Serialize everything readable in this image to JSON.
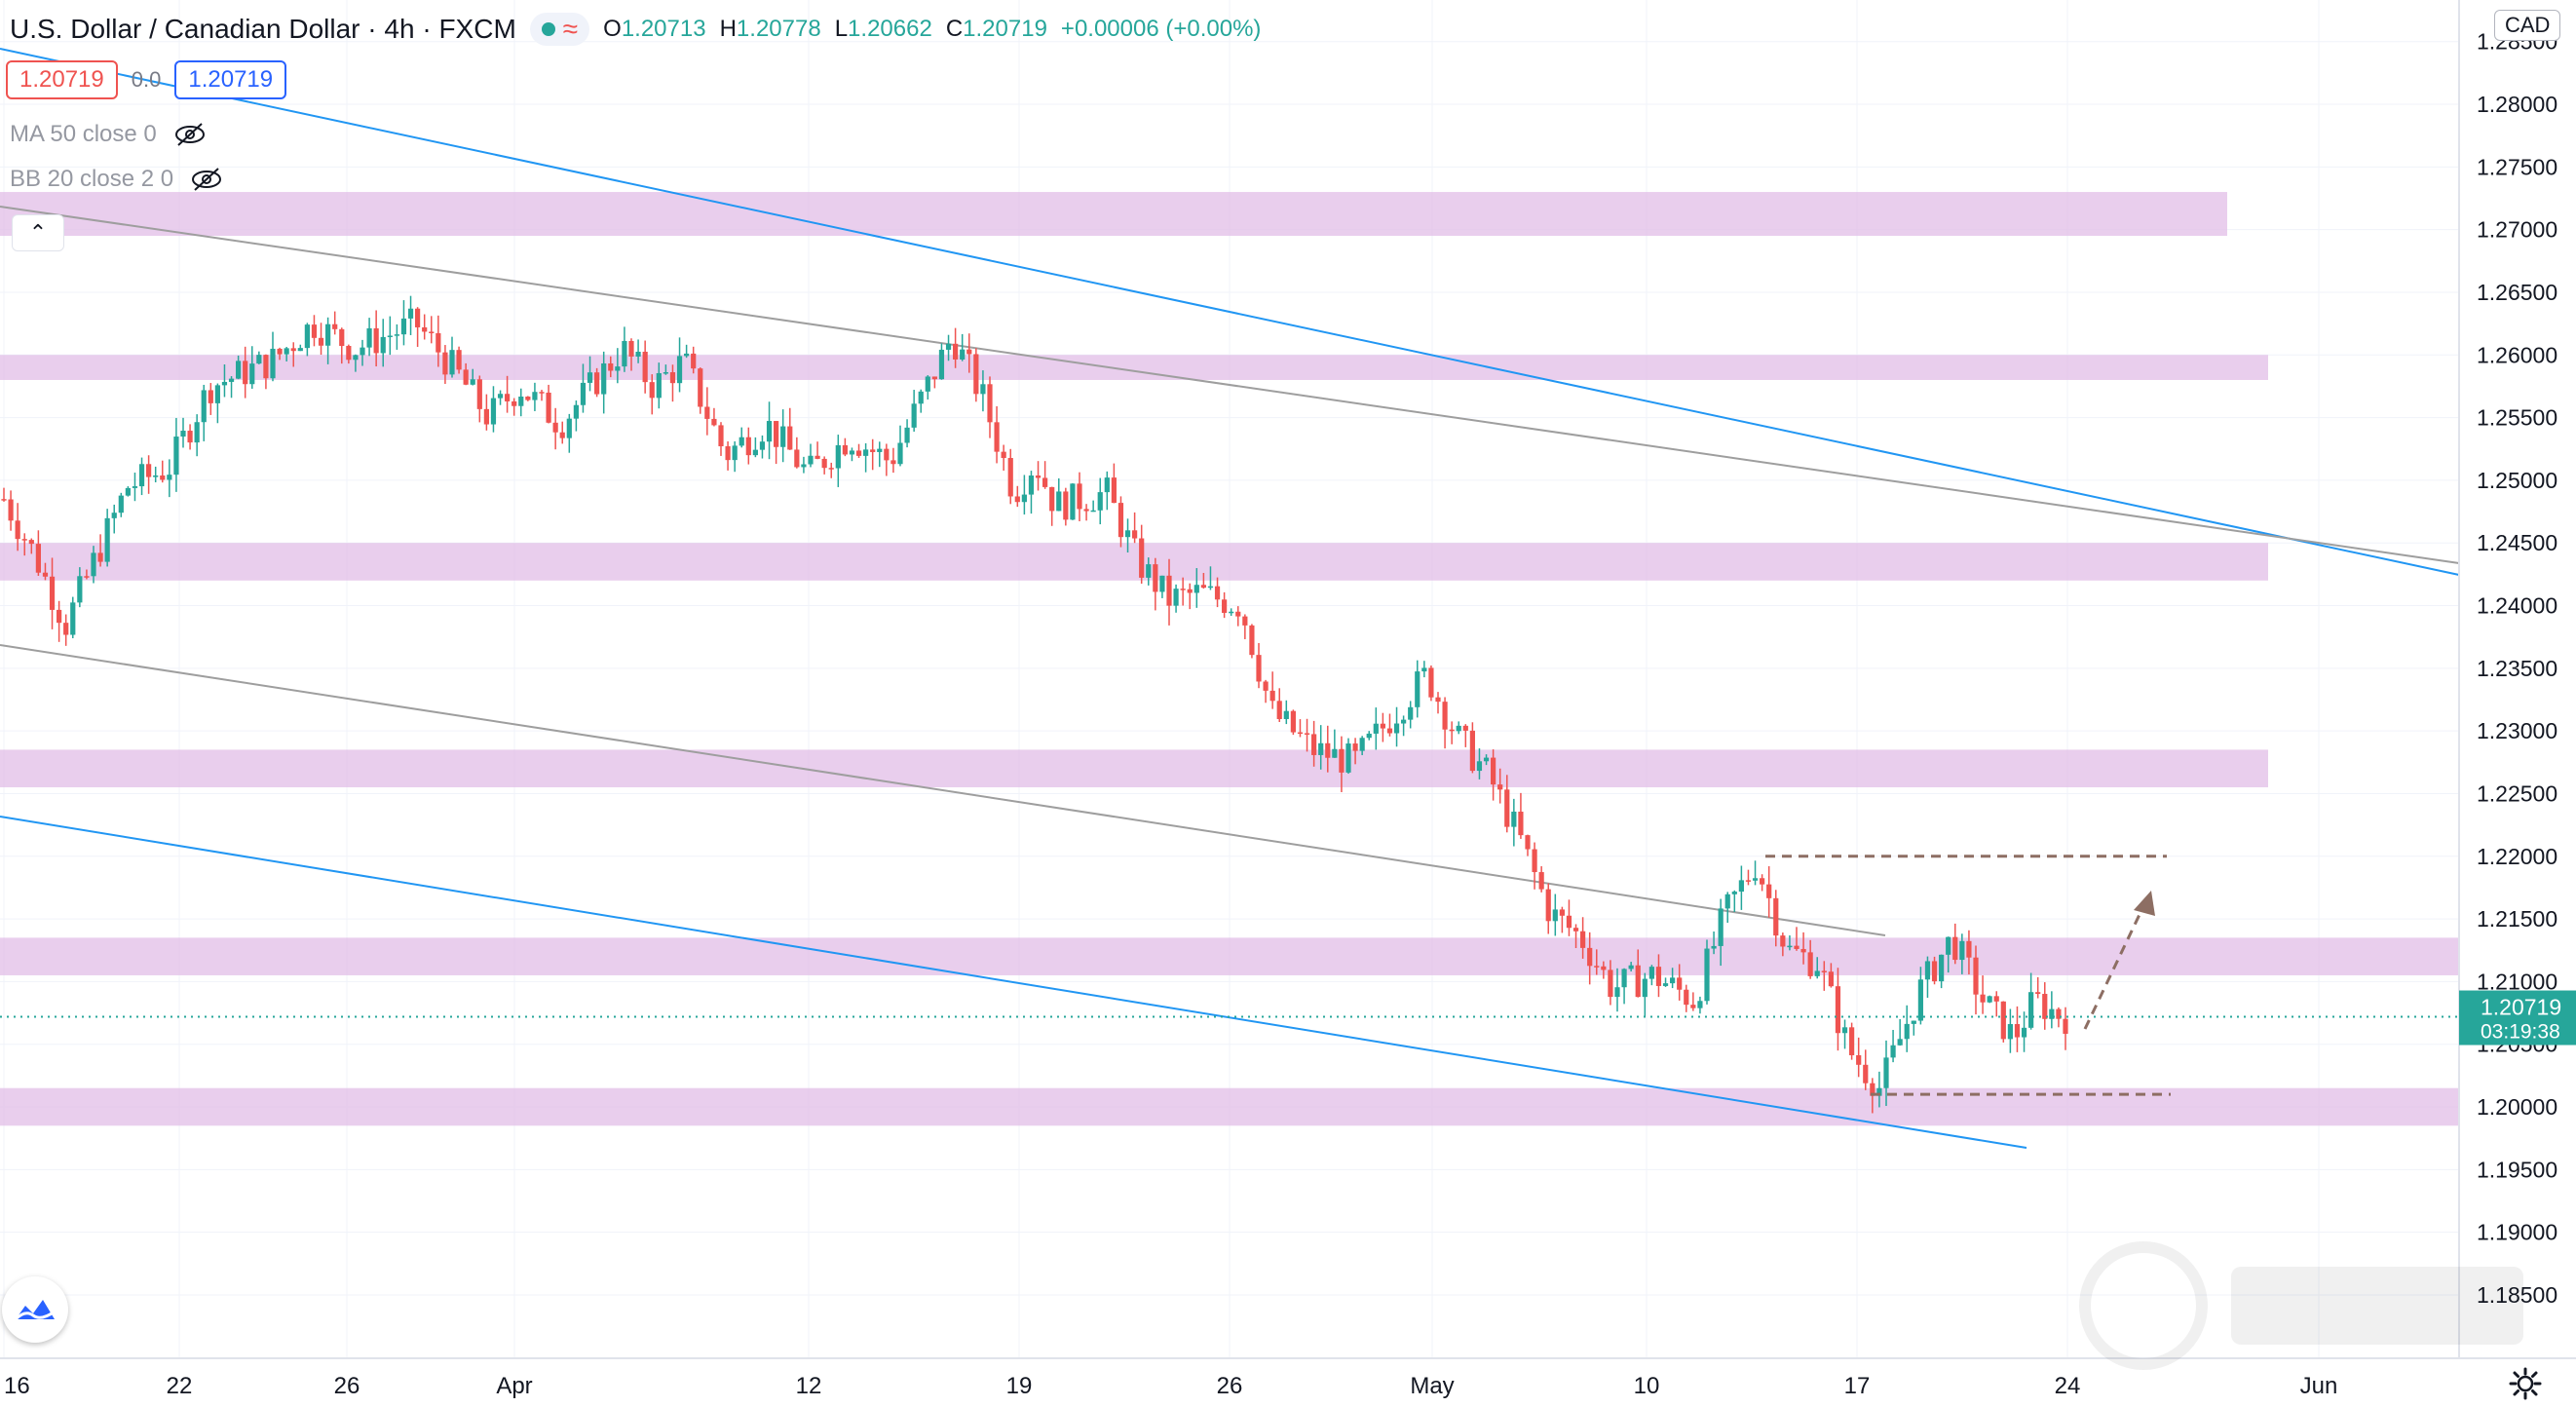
{
  "header": {
    "symbol": "U.S. Dollar / Canadian Dollar",
    "interval": "4h",
    "exchange": "FXCM",
    "ohlc": {
      "o_label": "O",
      "o": "1.20713",
      "h_label": "H",
      "h": "1.20778",
      "l_label": "L",
      "l": "1.20662",
      "c_label": "C",
      "c": "1.20719",
      "change": "+0.00006 (+0.00%)"
    },
    "bid": "1.20719",
    "spread": "0.0",
    "ask": "1.20719"
  },
  "indicators": {
    "ma": "MA 50 close 0",
    "bb": "BB 20 close 2 0"
  },
  "axis": {
    "currency": "CAD",
    "last_price": "1.20719",
    "countdown": "03:19:38"
  },
  "colors": {
    "up": "#26a69a",
    "down": "#ef5350",
    "zone": "#e1bee7",
    "channel_blue": "#2196f3",
    "channel_gray": "#9e9e9e",
    "range_line": "#8d6e63"
  },
  "chart_data": {
    "type": "candlestick",
    "symbol": "USDCAD",
    "timeframe": "4h",
    "x_tick_labels": [
      "16",
      "22",
      "26",
      "Apr",
      "12",
      "19",
      "26",
      "May",
      "10",
      "17",
      "24",
      "Jun"
    ],
    "y_ticks": [
      "1.18500",
      "1.19000",
      "1.19500",
      "1.20000",
      "1.20500",
      "1.21000",
      "1.21500",
      "1.22000",
      "1.22500",
      "1.23000",
      "1.23500",
      "1.24000",
      "1.24500",
      "1.25000",
      "1.25500",
      "1.26000",
      "1.26500",
      "1.27000",
      "1.27500",
      "1.28000",
      "1.28500"
    ],
    "ylim": [
      1.182,
      1.287
    ],
    "last_close": 1.20719,
    "price_path_x": [
      0,
      0.015,
      0.03,
      0.045,
      0.06,
      0.08,
      0.1,
      0.13,
      0.15,
      0.17,
      0.185,
      0.2,
      0.22,
      0.235,
      0.25,
      0.27,
      0.3,
      0.315,
      0.33,
      0.35,
      0.37,
      0.39,
      0.41,
      0.43,
      0.445,
      0.46,
      0.475,
      0.49,
      0.5,
      0.51,
      0.535,
      0.55,
      0.565,
      0.58,
      0.6,
      0.615,
      0.635,
      0.655,
      0.675,
      0.69,
      0.705,
      0.72,
      0.735,
      0.75,
      0.765,
      0.78,
      0.8,
      0.82,
      0.835,
      0.85,
      0.865,
      0.88,
      0.895,
      0.91,
      0.93,
      0.945,
      0.96,
      0.975,
      0.985,
      0.995,
      1.0
    ],
    "price_path_y": [
      1.2485,
      1.244,
      1.2385,
      1.244,
      1.2495,
      1.251,
      1.2575,
      1.2595,
      1.2625,
      1.2605,
      1.2615,
      1.2625,
      1.2585,
      1.255,
      1.2575,
      1.2545,
      1.2605,
      1.2575,
      1.2595,
      1.252,
      1.2545,
      1.2505,
      1.2535,
      1.2515,
      1.2565,
      1.2615,
      1.2565,
      1.249,
      1.2515,
      1.248,
      1.249,
      1.2435,
      1.2405,
      1.241,
      1.24,
      1.2315,
      1.2285,
      1.2275,
      1.2315,
      1.2345,
      1.2295,
      1.2265,
      1.2215,
      1.2155,
      1.2135,
      1.2095,
      1.2105,
      1.2085,
      1.2155,
      1.2195,
      1.2125,
      1.2115,
      1.2045,
      1.2015,
      1.2095,
      1.2135,
      1.2085,
      1.2055,
      1.2085,
      1.2075,
      1.2072
    ],
    "resistance_zones": [
      [
        1.2695,
        1.273
      ],
      [
        1.258,
        1.26
      ],
      [
        1.242,
        1.245
      ],
      [
        1.2255,
        1.2285
      ],
      [
        1.2105,
        1.2135
      ],
      [
        1.1985,
        1.2015
      ]
    ],
    "range_box": {
      "top": 1.22,
      "bottom": 1.201
    }
  }
}
